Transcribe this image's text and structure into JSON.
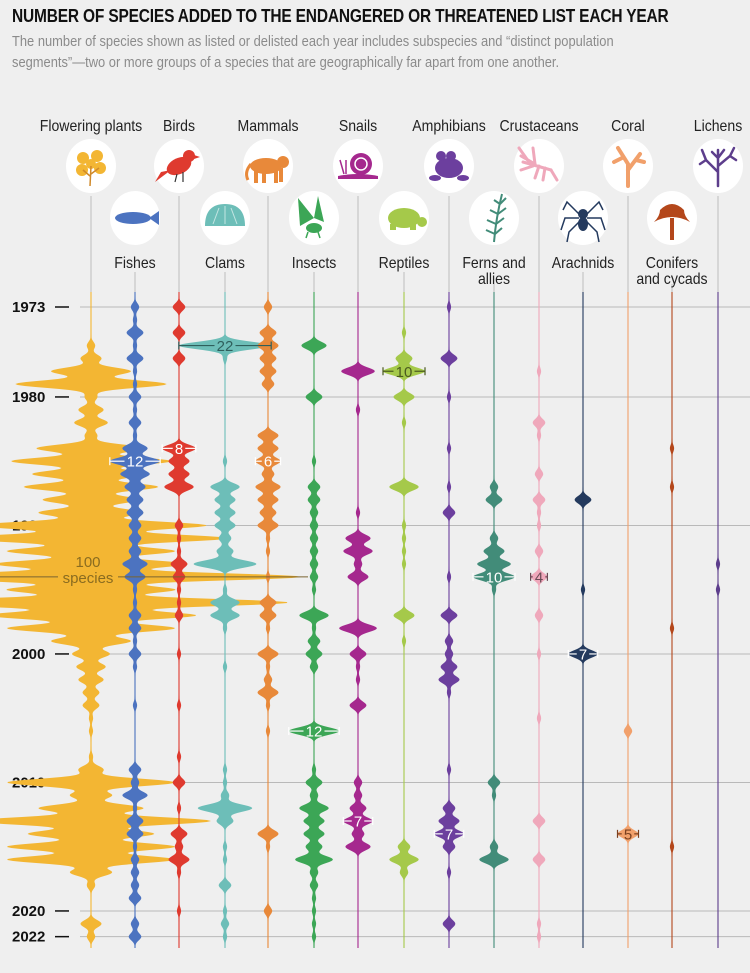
{
  "title": "NUMBER OF SPECIES ADDED TO THE ENDANGERED OR THREATENED LIST EACH YEAR",
  "subtitle": {
    "line1": "The number of species shown as listed or delisted each year includes subspecies and “distinct population",
    "line2": "segments”—two or more groups of a species that are geographically far apart from one another."
  },
  "chart_data": {
    "type": "area",
    "style": "vertical violin streams, width proportional to species count",
    "years": [
      1973,
      1974,
      1975,
      1976,
      1977,
      1978,
      1979,
      1980,
      1981,
      1982,
      1983,
      1984,
      1985,
      1986,
      1987,
      1988,
      1989,
      1990,
      1991,
      1992,
      1993,
      1994,
      1995,
      1996,
      1997,
      1998,
      1999,
      2000,
      2001,
      2002,
      2003,
      2004,
      2005,
      2006,
      2007,
      2008,
      2009,
      2010,
      2011,
      2012,
      2013,
      2014,
      2015,
      2016,
      2017,
      2018,
      2019,
      2020,
      2021,
      2022
    ],
    "year_tick_labels": [
      "1973",
      "1980",
      "1990",
      "2000",
      "2010",
      "2020",
      "2022"
    ],
    "grid": true,
    "series": [
      {
        "name": "Flowering plants",
        "color": "#f3b633",
        "icon": "flower-icon",
        "row": "top",
        "values": [
          0,
          0,
          0,
          2,
          5,
          19,
          36,
          3,
          6,
          8,
          3,
          26,
          38,
          28,
          32,
          23,
          25,
          55,
          65,
          40,
          46,
          100,
          40,
          94,
          50,
          40,
          19,
          9,
          7,
          6,
          4,
          4,
          1,
          1,
          0,
          1,
          6,
          40,
          10,
          25,
          57,
          30,
          40,
          40,
          10,
          2,
          0,
          0,
          5,
          2
        ]
      },
      {
        "name": "Fishes",
        "color": "#4c73c0",
        "icon": "fish-icon",
        "row": "bottom",
        "values": [
          2,
          1,
          4,
          1,
          4,
          1,
          1,
          3,
          1,
          3,
          1,
          6,
          12,
          7,
          5,
          4,
          4,
          3,
          3,
          3,
          6,
          5,
          1,
          1,
          3,
          3,
          1,
          3,
          1,
          0,
          0,
          1,
          0,
          0,
          0,
          0,
          3,
          2,
          6,
          1,
          4,
          4,
          1,
          2,
          2,
          2,
          3,
          0,
          2,
          3
        ]
      },
      {
        "name": "Birds",
        "color": "#df3a2f",
        "icon": "bird-icon",
        "row": "top",
        "values": [
          3,
          0,
          3,
          0,
          3,
          0,
          0,
          0,
          0,
          0,
          0,
          8,
          5,
          5,
          7,
          0,
          0,
          2,
          1,
          1,
          4,
          3,
          1,
          1,
          2,
          0,
          0,
          1,
          0,
          0,
          0,
          1,
          0,
          0,
          0,
          1,
          0,
          3,
          0,
          1,
          0,
          4,
          2,
          5,
          1,
          0,
          0,
          1,
          0,
          0
        ]
      },
      {
        "name": "Clams",
        "color": "#6dbeb8",
        "icon": "clam-icon",
        "row": "bottom",
        "values": [
          0,
          0,
          0,
          22,
          1,
          0,
          0,
          0,
          0,
          0,
          0,
          0,
          1,
          0,
          7,
          5,
          5,
          5,
          3,
          4,
          15,
          0,
          1,
          7,
          7,
          1,
          0,
          0,
          1,
          0,
          0,
          0,
          0,
          0,
          0,
          0,
          1,
          1,
          2,
          13,
          4,
          0,
          1,
          1,
          0,
          3,
          0,
          1,
          2,
          1
        ]
      },
      {
        "name": "Mammals",
        "color": "#e8893a",
        "icon": "tiger-icon",
        "row": "top",
        "values": [
          2,
          0,
          4,
          5,
          4,
          4,
          3,
          0,
          0,
          0,
          5,
          5,
          6,
          3,
          6,
          5,
          4,
          5,
          1,
          1,
          0,
          1,
          0,
          4,
          4,
          1,
          0,
          5,
          1,
          2,
          5,
          1,
          0,
          1,
          0,
          0,
          0,
          0,
          0,
          0,
          0,
          5,
          1,
          0,
          0,
          0,
          0,
          2,
          0,
          0
        ]
      },
      {
        "name": "Insects",
        "color": "#3ca656",
        "icon": "butterfly-icon",
        "row": "bottom",
        "values": [
          0,
          0,
          0,
          6,
          0,
          0,
          0,
          4,
          0,
          0,
          0,
          0,
          1,
          0,
          3,
          3,
          2,
          2,
          2,
          2,
          2,
          2,
          1,
          0,
          7,
          1,
          3,
          4,
          2,
          0,
          0,
          0,
          0,
          12,
          0,
          0,
          1,
          4,
          2,
          7,
          5,
          5,
          4,
          9,
          2,
          2,
          1,
          1,
          1,
          1
        ]
      },
      {
        "name": "Snails",
        "color": "#a5288e",
        "icon": "snail-icon",
        "row": "top",
        "values": [
          0,
          0,
          0,
          0,
          0,
          8,
          0,
          0,
          1,
          0,
          0,
          0,
          0,
          0,
          0,
          0,
          1,
          0,
          6,
          7,
          2,
          5,
          0,
          0,
          0,
          9,
          0,
          4,
          1,
          1,
          0,
          4,
          0,
          0,
          0,
          0,
          0,
          2,
          2,
          4,
          7,
          3,
          6,
          0,
          0,
          0,
          0,
          0,
          0,
          0
        ]
      },
      {
        "name": "Reptiles",
        "color": "#a5c94a",
        "icon": "turtle-icon",
        "row": "bottom",
        "values": [
          0,
          0,
          1,
          0,
          4,
          10,
          0,
          5,
          0,
          1,
          0,
          0,
          0,
          0,
          7,
          0,
          0,
          1,
          1,
          1,
          1,
          0,
          0,
          0,
          5,
          0,
          1,
          0,
          0,
          0,
          0,
          0,
          0,
          0,
          0,
          0,
          0,
          0,
          0,
          0,
          0,
          0,
          3,
          7,
          2,
          0,
          0,
          0,
          0,
          0
        ]
      },
      {
        "name": "Amphibians",
        "color": "#6c3f9e",
        "icon": "frog-icon",
        "row": "top",
        "values": [
          1,
          0,
          0,
          0,
          4,
          0,
          0,
          1,
          0,
          0,
          0,
          1,
          0,
          0,
          1,
          0,
          3,
          0,
          0,
          0,
          0,
          1,
          0,
          0,
          4,
          0,
          2,
          2,
          4,
          5,
          1,
          0,
          0,
          0,
          0,
          0,
          1,
          0,
          0,
          3,
          5,
          7,
          3,
          0,
          1,
          0,
          0,
          0,
          3,
          0
        ]
      },
      {
        "name": "Ferns and allies",
        "color": "#428c79",
        "icon": "fern-icon",
        "row": "bottom",
        "values": [
          0,
          0,
          0,
          0,
          0,
          0,
          0,
          0,
          0,
          0,
          0,
          0,
          0,
          0,
          2,
          4,
          0,
          0,
          2,
          5,
          8,
          10,
          1,
          0,
          0,
          0,
          0,
          0,
          0,
          0,
          0,
          0,
          0,
          0,
          0,
          0,
          0,
          3,
          1,
          0,
          0,
          0,
          2,
          7,
          0,
          0,
          0,
          0,
          0,
          0
        ]
      },
      {
        "name": "Crustaceans",
        "color": "#efa8bb",
        "icon": "crayfish-icon",
        "row": "top",
        "values": [
          0,
          0,
          0,
          0,
          0,
          1,
          0,
          0,
          0,
          3,
          1,
          0,
          0,
          2,
          0,
          3,
          1,
          1,
          0,
          2,
          0,
          4,
          0,
          0,
          2,
          0,
          0,
          1,
          0,
          0,
          0,
          0,
          1,
          0,
          0,
          0,
          0,
          0,
          0,
          0,
          3,
          0,
          0,
          3,
          0,
          0,
          0,
          0,
          1,
          1
        ]
      },
      {
        "name": "Arachnids",
        "color": "#243a5e",
        "icon": "spider-icon",
        "row": "bottom",
        "values": [
          0,
          0,
          0,
          0,
          0,
          0,
          0,
          0,
          0,
          0,
          0,
          0,
          0,
          0,
          0,
          4,
          0,
          0,
          0,
          0,
          0,
          0,
          1,
          0,
          0,
          0,
          0,
          7,
          0,
          0,
          0,
          0,
          0,
          0,
          0,
          0,
          0,
          0,
          0,
          0,
          0,
          0,
          0,
          0,
          0,
          0,
          0,
          0,
          0,
          0
        ]
      },
      {
        "name": "Coral",
        "color": "#f1a06b",
        "icon": "coral-icon",
        "row": "top",
        "values": [
          0,
          0,
          0,
          0,
          0,
          0,
          0,
          0,
          0,
          0,
          0,
          0,
          0,
          0,
          0,
          0,
          0,
          0,
          0,
          0,
          0,
          0,
          0,
          0,
          0,
          0,
          0,
          0,
          0,
          0,
          0,
          0,
          0,
          2,
          0,
          0,
          0,
          0,
          0,
          0,
          0,
          5,
          0,
          0,
          0,
          0,
          0,
          0,
          0,
          0
        ]
      },
      {
        "name": "Conifers and cycads",
        "color": "#b4471b",
        "icon": "tree-icon",
        "row": "bottom",
        "values": [
          0,
          0,
          0,
          0,
          0,
          0,
          0,
          0,
          0,
          0,
          0,
          1,
          0,
          0,
          1,
          0,
          0,
          0,
          0,
          0,
          0,
          0,
          0,
          0,
          0,
          1,
          0,
          0,
          0,
          0,
          0,
          0,
          0,
          0,
          0,
          0,
          0,
          0,
          0,
          0,
          0,
          0,
          1,
          0,
          0,
          0,
          0,
          0,
          0,
          0
        ]
      },
      {
        "name": "Lichens",
        "color": "#5d3e8c",
        "icon": "lichen-icon",
        "row": "top",
        "values": [
          0,
          0,
          0,
          0,
          0,
          0,
          0,
          0,
          0,
          0,
          0,
          0,
          0,
          0,
          0,
          0,
          0,
          0,
          0,
          0,
          1,
          0,
          1,
          0,
          0,
          0,
          0,
          0,
          0,
          0,
          0,
          0,
          0,
          0,
          0,
          0,
          0,
          0,
          0,
          0,
          0,
          0,
          0,
          0,
          0,
          0,
          0,
          0,
          0,
          0
        ]
      }
    ],
    "annotations": [
      {
        "series": "Clams",
        "year": 1976,
        "text": "22",
        "color": "#2f5f5c"
      },
      {
        "series": "Birds",
        "year": 1984,
        "text": "8",
        "color": "#ffffff"
      },
      {
        "series": "Fishes",
        "year": 1985,
        "text": "12",
        "color": "#ffffff"
      },
      {
        "series": "Mammals",
        "year": 1985,
        "text": "6",
        "color": "#ffffff"
      },
      {
        "series": "Reptiles",
        "year": 1978,
        "text": "10",
        "color": "#4a5a1f"
      },
      {
        "series": "Ferns and allies",
        "year": 1994,
        "text": "10",
        "color": "#ffffff"
      },
      {
        "series": "Crustaceans",
        "year": 1994,
        "text": "4",
        "color": "#6b4a55"
      },
      {
        "series": "Arachnids",
        "year": 2000,
        "text": "7",
        "color": "#ffffff"
      },
      {
        "series": "Insects",
        "year": 2006,
        "text": "12",
        "color": "#ffffff"
      },
      {
        "series": "Snails",
        "year": 2013,
        "text": "7",
        "color": "#ffffff"
      },
      {
        "series": "Amphibians",
        "year": 2014,
        "text": "7",
        "color": "#ffffff"
      },
      {
        "series": "Coral",
        "year": 2014,
        "text": "5",
        "color": "#7a4020"
      }
    ],
    "scale_label": {
      "series": "Flowering plants",
      "year": 1994,
      "value": "100",
      "unit": "species",
      "color": "#8a6c20"
    }
  }
}
